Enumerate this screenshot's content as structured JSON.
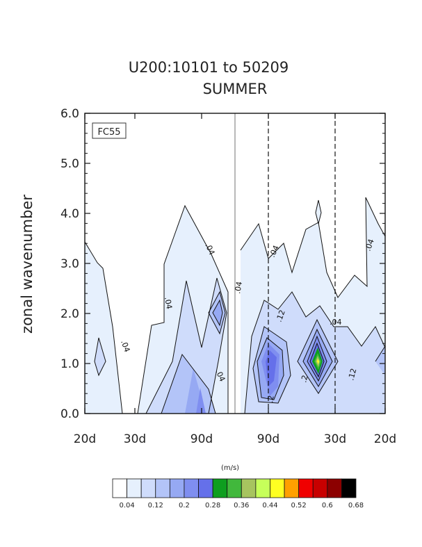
{
  "chart_data": {
    "type": "contour",
    "title": "U200:10101 to 50209",
    "subtitle": "SUMMER",
    "ylabel": "zonal wavenumber",
    "xlabel": "",
    "inset_label": "FC55",
    "units_label": "(m/s)",
    "ylim": [
      0.0,
      6.0
    ],
    "y_ticks": [
      "0.0",
      "1.0",
      "2.0",
      "3.0",
      "4.0",
      "5.0",
      "6.0"
    ],
    "x_ticks": [
      "20d",
      "30d",
      "90d",
      "90d",
      "30d",
      "20d"
    ],
    "grid": false,
    "colorbar": {
      "placement": "bottom",
      "levels": [
        "0.04",
        "0.12",
        "0.2",
        "0.28",
        "0.36",
        "0.44",
        "0.52",
        "0.6",
        "0.68"
      ],
      "colors": [
        "#ffffff",
        "#e6f0fd",
        "#cfdcfb",
        "#b3c4f8",
        "#96a9f3",
        "#7f8ef0",
        "#6570ea",
        "#0e9e1f",
        "#41b83c",
        "#a7c45f",
        "#c6ff5a",
        "#ffff22",
        "#ffa000",
        "#f00000",
        "#c80000",
        "#8c0000",
        "#000000"
      ]
    },
    "contour_labels": [
      ".04",
      ".04",
      ".04",
      ".04",
      ".04",
      ".04",
      ".04",
      ".04",
      ".12",
      ".12",
      ".2",
      ".2"
    ]
  }
}
